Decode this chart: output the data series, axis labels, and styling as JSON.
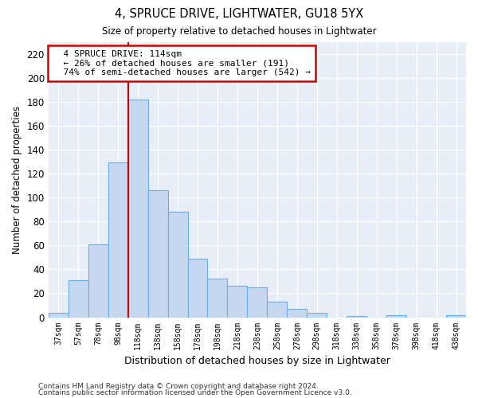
{
  "title1": "4, SPRUCE DRIVE, LIGHTWATER, GU18 5YX",
  "title2": "Size of property relative to detached houses in Lightwater",
  "xlabel": "Distribution of detached houses by size in Lightwater",
  "ylabel": "Number of detached properties",
  "categories": [
    "37sqm",
    "57sqm",
    "78sqm",
    "98sqm",
    "118sqm",
    "138sqm",
    "158sqm",
    "178sqm",
    "198sqm",
    "218sqm",
    "238sqm",
    "258sqm",
    "278sqm",
    "298sqm",
    "318sqm",
    "338sqm",
    "358sqm",
    "378sqm",
    "398sqm",
    "418sqm",
    "438sqm"
  ],
  "values": [
    4,
    31,
    61,
    129,
    182,
    106,
    88,
    49,
    32,
    26,
    25,
    13,
    7,
    4,
    0,
    1,
    0,
    2,
    0,
    0,
    2
  ],
  "bar_color": "#c5d8f0",
  "bar_edge_color": "#6aaee8",
  "background_color": "#e8eef8",
  "grid_color": "#d0d8e8",
  "annotation_text": "  4 SPRUCE DRIVE: 114sqm\n  ← 26% of detached houses are smaller (191)\n  74% of semi-detached houses are larger (542) →",
  "annotation_box_color": "#ffffff",
  "annotation_box_edge": "#cc0000",
  "ylim": [
    0,
    230
  ],
  "yticks": [
    0,
    20,
    40,
    60,
    80,
    100,
    120,
    140,
    160,
    180,
    200,
    220
  ],
  "footer1": "Contains HM Land Registry data © Crown copyright and database right 2024.",
  "footer2": "Contains public sector information licensed under the Open Government Licence v3.0."
}
